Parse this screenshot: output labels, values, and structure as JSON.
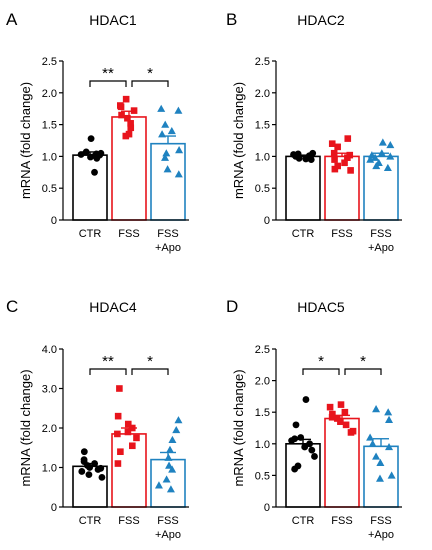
{
  "chart_data": [
    {
      "type": "bar",
      "panel": "A",
      "title": "HDAC1",
      "ylabel": "mRNA (fold change)",
      "ylim": [
        0,
        2.5
      ],
      "yticks": [
        "0",
        "0.5",
        "1.0",
        "1.5",
        "2.0",
        "2.5"
      ],
      "categories": [
        "CTR",
        "FSS",
        "FSS",
        "+Apo"
      ],
      "groups": [
        {
          "label": "CTR",
          "color": "#000000",
          "marker": "circle",
          "mean": 1.02,
          "sem": 0.05,
          "points": [
            1.28,
            1.07,
            1.05,
            1.04,
            1.03,
            1.02,
            1.01,
            1.0,
            0.99,
            0.97,
            0.75
          ]
        },
        {
          "label": "FSS",
          "color": "#e8141c",
          "marker": "square",
          "mean": 1.62,
          "sem": 0.09,
          "points": [
            1.9,
            1.8,
            1.78,
            1.72,
            1.65,
            1.6,
            1.52,
            1.45,
            1.35,
            1.32
          ]
        },
        {
          "label": "FSS\n+Apo",
          "color": "#1f82c0",
          "marker": "triangle",
          "mean": 1.2,
          "sem": 0.12,
          "points": [
            1.75,
            1.72,
            1.5,
            1.4,
            1.35,
            1.1,
            1.05,
            0.98,
            0.8,
            0.72
          ]
        }
      ],
      "significance": [
        {
          "from": 0,
          "to": 1,
          "label": "**"
        },
        {
          "from": 1,
          "to": 2,
          "label": "*"
        }
      ]
    },
    {
      "type": "bar",
      "panel": "B",
      "title": "HDAC2",
      "ylabel": "mRNA (fold change)",
      "ylim": [
        0,
        2.5
      ],
      "yticks": [
        "0",
        "0.5",
        "1.0",
        "1.5",
        "2.0",
        "2.5"
      ],
      "categories": [
        "CTR",
        "FSS",
        "FSS",
        "+Apo"
      ],
      "groups": [
        {
          "label": "CTR",
          "color": "#000000",
          "marker": "circle",
          "mean": 1.0,
          "sem": 0.02,
          "points": [
            1.05,
            1.04,
            1.03,
            1.02,
            1.01,
            1.0,
            0.99,
            0.98,
            0.97,
            0.96,
            0.95
          ]
        },
        {
          "label": "FSS",
          "color": "#e8141c",
          "marker": "square",
          "mean": 1.0,
          "sem": 0.05,
          "points": [
            1.28,
            1.2,
            1.15,
            1.05,
            1.02,
            0.98,
            0.95,
            0.9,
            0.85,
            0.8,
            0.78
          ]
        },
        {
          "label": "FSS\n+Apo",
          "color": "#1f82c0",
          "marker": "triangle",
          "mean": 1.0,
          "sem": 0.05,
          "points": [
            1.22,
            1.18,
            1.05,
            1.02,
            1.0,
            0.98,
            0.95,
            0.9,
            0.85,
            0.82
          ]
        }
      ],
      "significance": []
    },
    {
      "type": "bar",
      "panel": "C",
      "title": "HDAC4",
      "ylabel": "mRNA (fold change)",
      "ylim": [
        0,
        4.0
      ],
      "yticks": [
        "0",
        "1.0",
        "2.0",
        "3.0",
        "4.0"
      ],
      "categories": [
        "CTR",
        "FSS",
        "FSS",
        "+Apo"
      ],
      "groups": [
        {
          "label": "CTR",
          "color": "#000000",
          "marker": "circle",
          "mean": 1.03,
          "sem": 0.07,
          "points": [
            1.4,
            1.2,
            1.15,
            1.1,
            1.05,
            1.0,
            0.98,
            0.95,
            0.9,
            0.82,
            0.75
          ]
        },
        {
          "label": "FSS",
          "color": "#e8141c",
          "marker": "square",
          "mean": 1.85,
          "sem": 0.15,
          "points": [
            3.0,
            2.3,
            2.1,
            2.0,
            1.9,
            1.85,
            1.75,
            1.55,
            1.4,
            1.1
          ]
        },
        {
          "label": "FSS\n+Apo",
          "color": "#1f82c0",
          "marker": "triangle",
          "mean": 1.2,
          "sem": 0.18,
          "points": [
            2.2,
            1.95,
            1.7,
            1.45,
            1.25,
            1.05,
            0.95,
            0.7,
            0.55,
            0.45
          ]
        }
      ],
      "significance": [
        {
          "from": 0,
          "to": 1,
          "label": "**"
        },
        {
          "from": 1,
          "to": 2,
          "label": "*"
        }
      ]
    },
    {
      "type": "bar",
      "panel": "D",
      "title": "HDAC5",
      "ylabel": "mRNA (fold change)",
      "ylim": [
        0,
        2.5
      ],
      "yticks": [
        "0",
        "0.5",
        "1.0",
        "1.5",
        "2.0",
        "2.5"
      ],
      "categories": [
        "CTR",
        "FSS",
        "FSS",
        "+Apo"
      ],
      "groups": [
        {
          "label": "CTR",
          "color": "#000000",
          "marker": "circle",
          "mean": 1.0,
          "sem": 0.07,
          "points": [
            1.7,
            1.3,
            1.1,
            1.08,
            1.05,
            1.0,
            0.95,
            0.9,
            0.8,
            0.65,
            0.6
          ]
        },
        {
          "label": "FSS",
          "color": "#e8141c",
          "marker": "square",
          "mean": 1.4,
          "sem": 0.05,
          "points": [
            1.62,
            1.58,
            1.5,
            1.47,
            1.42,
            1.4,
            1.35,
            1.3,
            1.2,
            1.18
          ]
        },
        {
          "label": "FSS\n+Apo",
          "color": "#1f82c0",
          "marker": "triangle",
          "mean": 0.96,
          "sem": 0.12,
          "points": [
            1.55,
            1.5,
            1.38,
            1.1,
            1.0,
            0.95,
            0.8,
            0.7,
            0.5,
            0.45
          ]
        }
      ],
      "significance": [
        {
          "from": 0,
          "to": 1,
          "label": "*"
        },
        {
          "from": 1,
          "to": 2,
          "label": "*"
        }
      ]
    }
  ]
}
